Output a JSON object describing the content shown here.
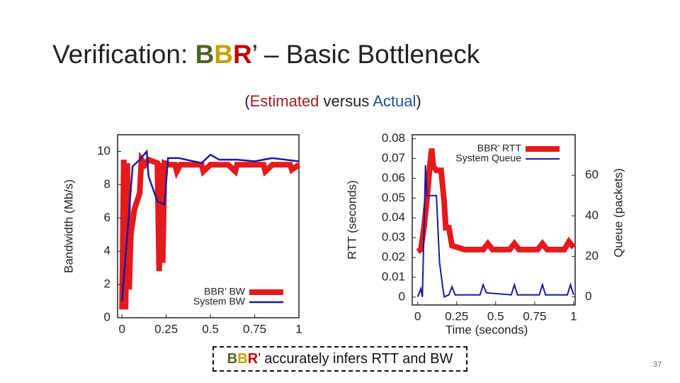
{
  "title": [
    "Verification: ",
    "B",
    "B",
    "R",
    "’ – Basic Bottleneck"
  ],
  "subtitle": [
    "(",
    "Estimated",
    " versus ",
    "Actual",
    ")"
  ],
  "caption": [
    "B",
    "B",
    "R",
    "’ accurately infers RTT and BW"
  ],
  "page_number": "37",
  "chart_data": [
    {
      "type": "line",
      "ylabel": "Bandwidth (Mb/s)",
      "legend": "lower right",
      "xlim": [
        -0.025,
        1
      ],
      "xticks": [
        0,
        0.25,
        0.5,
        0.75,
        1
      ],
      "ylim": [
        0,
        11
      ],
      "yticks": [
        0,
        2,
        4,
        6,
        8,
        10
      ],
      "series": [
        {
          "name": "BBR’ BW",
          "color": "#e41a1c",
          "width": 8,
          "x": [
            0,
            0.01,
            0.02,
            0.03,
            0.04,
            0.05,
            0.07,
            0.1,
            0.11,
            0.13,
            0.15,
            0.2,
            0.21,
            0.22,
            0.23,
            0.24,
            0.27,
            0.3,
            0.31,
            0.33,
            0.36,
            0.45,
            0.46,
            0.5,
            0.55,
            0.6,
            0.64,
            0.65,
            0.7,
            0.8,
            0.81,
            0.85,
            0.9,
            0.95,
            0.96,
            1
          ],
          "values": [
            0.5,
            9.5,
            0.5,
            9.3,
            1.7,
            5,
            6.5,
            7.5,
            9.5,
            9.2,
            9.5,
            9.3,
            2.8,
            9.3,
            3.3,
            9.3,
            9.2,
            9.2,
            8.8,
            9.2,
            9.2,
            9.2,
            8.8,
            9.2,
            9.2,
            9.2,
            8.8,
            9.2,
            9.2,
            9.2,
            8.8,
            9.2,
            9.2,
            9.2,
            8.9,
            9.2
          ]
        },
        {
          "name": "System BW",
          "color": "#1a1a9c",
          "width": 2.5,
          "x": [
            0,
            0.03,
            0.06,
            0.1,
            0.14,
            0.15,
            0.2,
            0.24,
            0.26,
            0.32,
            0.45,
            0.5,
            0.55,
            0.65,
            0.75,
            0.85,
            1
          ],
          "values": [
            1,
            5,
            9.1,
            9.5,
            10,
            8.5,
            7,
            6.8,
            9.6,
            9.6,
            9.3,
            9.8,
            9.5,
            9.5,
            9.4,
            9.6,
            9.4
          ]
        }
      ]
    },
    {
      "type": "line",
      "xlabel": "Time (seconds)",
      "ylabel": "RTT (seconds)",
      "y2label": "Queue (packets)",
      "legend": "upper right",
      "xlim": [
        -0.035,
        1.01
      ],
      "xticks": [
        0,
        0.25,
        0.5,
        0.75,
        1
      ],
      "ylim": [
        -0.004,
        0.082
      ],
      "yticks": [
        0,
        0.01,
        0.02,
        0.03,
        0.04,
        0.05,
        0.06,
        0.07,
        0.08
      ],
      "y2lim": [
        -4,
        80
      ],
      "y2ticks": [
        0,
        20,
        40,
        60
      ],
      "series": [
        {
          "name": "BBR’ RTT",
          "color": "#e41a1c",
          "width": 8,
          "x": [
            0,
            0.02,
            0.04,
            0.06,
            0.08,
            0.09,
            0.1,
            0.12,
            0.15,
            0.17,
            0.18,
            0.2,
            0.22,
            0.26,
            0.3,
            0.42,
            0.45,
            0.48,
            0.59,
            0.62,
            0.65,
            0.77,
            0.8,
            0.83,
            0.94,
            0.97,
            1
          ],
          "values": [
            0.023,
            0.024,
            0.035,
            0.05,
            0.068,
            0.075,
            0.066,
            0.064,
            0.064,
            0.048,
            0.035,
            0.035,
            0.026,
            0.025,
            0.024,
            0.024,
            0.027,
            0.024,
            0.024,
            0.027,
            0.024,
            0.024,
            0.027,
            0.024,
            0.024,
            0.028,
            0.025
          ]
        },
        {
          "name": "System Queue",
          "color": "#1a1a9c",
          "width": 2,
          "axis": "y2",
          "x": [
            0,
            0.02,
            0.03,
            0.05,
            0.06,
            0.08,
            0.12,
            0.14,
            0.16,
            0.17,
            0.2,
            0.22,
            0.24,
            0.4,
            0.42,
            0.44,
            0.6,
            0.62,
            0.64,
            0.78,
            0.8,
            0.82,
            0.96,
            0.98,
            1
          ],
          "values": [
            0,
            4,
            0,
            65,
            50,
            50,
            50,
            17,
            5,
            0,
            1,
            5,
            1,
            1,
            6,
            2,
            1,
            6,
            1,
            1,
            6,
            1,
            1,
            6,
            1
          ]
        }
      ]
    }
  ]
}
